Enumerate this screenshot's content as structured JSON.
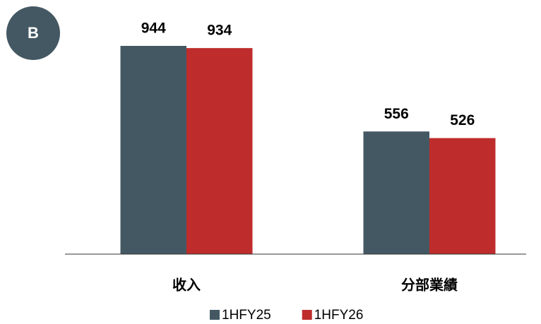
{
  "chart_data": {
    "type": "bar",
    "annotations": [
      "B"
    ],
    "categories": [
      "收入",
      "分部業績"
    ],
    "series": [
      {
        "name": "1HFY25",
        "color": "#435863",
        "values": [
          944,
          556
        ]
      },
      {
        "name": "1HFY26",
        "color": "#bf2c2c",
        "values": [
          934,
          526
        ]
      }
    ],
    "ylim": [
      0,
      1000
    ],
    "legend": "bottom"
  }
}
